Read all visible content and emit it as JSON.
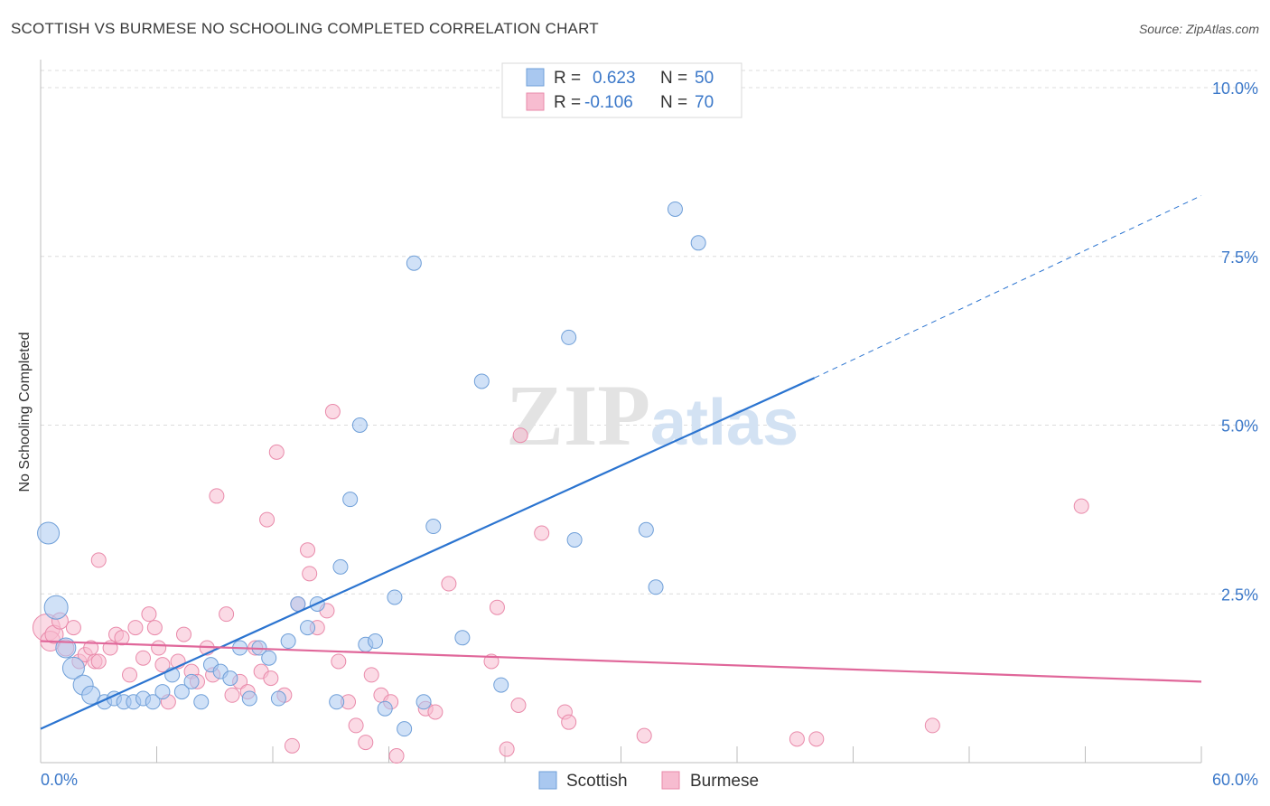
{
  "header": {
    "title": "SCOTTISH VS BURMESE NO SCHOOLING COMPLETED CORRELATION CHART",
    "source": "Source: ZipAtlas.com"
  },
  "watermark": {
    "zip": "ZIP",
    "atlas": "atlas"
  },
  "legend_top": [
    {
      "r_label": "R =",
      "r_value": "0.623",
      "n_label": "N =",
      "n_value": "50"
    },
    {
      "r_label": "R =",
      "r_value": "-0.106",
      "n_label": "N =",
      "n_value": "70"
    }
  ],
  "colors": {
    "scottish_fill": "#a9c8f0",
    "scottish_stroke": "#6f9fd8",
    "scottish_line": "#2b74d0",
    "burmese_fill": "#f7bcd0",
    "burmese_stroke": "#e98aaa",
    "burmese_line": "#e0679a",
    "value_text": "#3b78c9",
    "grid": "#dcdcdc"
  },
  "chart_data": {
    "type": "scatter",
    "title": "SCOTTISH VS BURMESE NO SCHOOLING COMPLETED CORRELATION CHART",
    "xlabel": "",
    "ylabel": "No Schooling Completed",
    "xlim": [
      0,
      60
    ],
    "ylim": [
      0,
      10
    ],
    "x_tick_labels": [
      "0.0%",
      "60.0%"
    ],
    "y_tick_labels": [
      "2.5%",
      "5.0%",
      "7.5%",
      "10.0%"
    ],
    "y_ticks": [
      2.5,
      5.0,
      7.5,
      10.0
    ],
    "grid": true,
    "legend_position": "bottom-center",
    "series": [
      {
        "name": "Scottish",
        "R": 0.623,
        "N": 50,
        "trend": {
          "x0": 0,
          "y0": 0.5,
          "x1": 40,
          "y1": 5.7,
          "dashed_to_x": 60,
          "dashed_to_y": 8.4
        },
        "points": [
          [
            0.4,
            3.4,
            12
          ],
          [
            0.8,
            2.3,
            13
          ],
          [
            1.3,
            1.7,
            11
          ],
          [
            1.7,
            1.4,
            12
          ],
          [
            2.2,
            1.15,
            11
          ],
          [
            2.6,
            1.0,
            10
          ],
          [
            3.3,
            0.9,
            8
          ],
          [
            3.8,
            0.95,
            8
          ],
          [
            4.3,
            0.9,
            8
          ],
          [
            4.8,
            0.9,
            8
          ],
          [
            5.3,
            0.95,
            8
          ],
          [
            5.8,
            0.9,
            8
          ],
          [
            6.3,
            1.05,
            8
          ],
          [
            6.8,
            1.3,
            8
          ],
          [
            7.3,
            1.05,
            8
          ],
          [
            7.8,
            1.2,
            8
          ],
          [
            8.3,
            0.9,
            8
          ],
          [
            8.8,
            1.45,
            8
          ],
          [
            9.3,
            1.35,
            8
          ],
          [
            9.8,
            1.25,
            8
          ],
          [
            10.3,
            1.7,
            8
          ],
          [
            10.8,
            0.95,
            8
          ],
          [
            11.3,
            1.7,
            8
          ],
          [
            11.8,
            1.55,
            8
          ],
          [
            12.3,
            0.95,
            8
          ],
          [
            12.8,
            1.8,
            8
          ],
          [
            13.3,
            2.35,
            8
          ],
          [
            13.8,
            2.0,
            8
          ],
          [
            14.3,
            2.35,
            8
          ],
          [
            15.3,
            0.9,
            8
          ],
          [
            15.5,
            2.9,
            8
          ],
          [
            16.0,
            3.9,
            8
          ],
          [
            16.5,
            5.0,
            8
          ],
          [
            16.8,
            1.75,
            8
          ],
          [
            17.3,
            1.8,
            8
          ],
          [
            17.8,
            0.8,
            8
          ],
          [
            18.3,
            2.45,
            8
          ],
          [
            18.8,
            0.5,
            8
          ],
          [
            19.3,
            7.4,
            8
          ],
          [
            19.8,
            0.9,
            8
          ],
          [
            20.3,
            3.5,
            8
          ],
          [
            21.8,
            1.85,
            8
          ],
          [
            22.8,
            5.65,
            8
          ],
          [
            23.8,
            1.15,
            8
          ],
          [
            27.3,
            6.3,
            8
          ],
          [
            27.6,
            3.3,
            8
          ],
          [
            31.3,
            3.45,
            8
          ],
          [
            31.8,
            2.6,
            8
          ],
          [
            32.8,
            8.2,
            8
          ],
          [
            34.0,
            7.7,
            8
          ]
        ]
      },
      {
        "name": "Burmese",
        "R": -0.106,
        "N": 70,
        "trend": {
          "x0": 0,
          "y0": 1.8,
          "x1": 60,
          "y1": 1.2
        },
        "points": [
          [
            0.3,
            2.0,
            15
          ],
          [
            0.5,
            1.8,
            11
          ],
          [
            0.7,
            1.9,
            10
          ],
          [
            1.0,
            2.1,
            9
          ],
          [
            1.3,
            1.7,
            9
          ],
          [
            1.7,
            2.0,
            8
          ],
          [
            2.0,
            1.5,
            8
          ],
          [
            2.3,
            1.6,
            8
          ],
          [
            2.6,
            1.7,
            8
          ],
          [
            2.8,
            1.5,
            8
          ],
          [
            3.0,
            1.5,
            8
          ],
          [
            3.0,
            3.0,
            8
          ],
          [
            3.6,
            1.7,
            8
          ],
          [
            3.9,
            1.9,
            8
          ],
          [
            4.2,
            1.85,
            8
          ],
          [
            4.6,
            1.3,
            8
          ],
          [
            4.9,
            2.0,
            8
          ],
          [
            5.3,
            1.55,
            8
          ],
          [
            5.6,
            2.2,
            8
          ],
          [
            5.9,
            2.0,
            8
          ],
          [
            6.1,
            1.7,
            8
          ],
          [
            6.3,
            1.45,
            8
          ],
          [
            6.6,
            0.9,
            8
          ],
          [
            7.1,
            1.5,
            8
          ],
          [
            7.4,
            1.9,
            8
          ],
          [
            7.8,
            1.35,
            8
          ],
          [
            8.1,
            1.2,
            8
          ],
          [
            8.6,
            1.7,
            8
          ],
          [
            8.9,
            1.3,
            8
          ],
          [
            9.1,
            3.95,
            8
          ],
          [
            9.6,
            2.2,
            8
          ],
          [
            9.9,
            1.0,
            8
          ],
          [
            10.3,
            1.2,
            8
          ],
          [
            10.7,
            1.05,
            8
          ],
          [
            11.1,
            1.7,
            8
          ],
          [
            11.4,
            1.35,
            8
          ],
          [
            11.7,
            3.6,
            8
          ],
          [
            11.9,
            1.25,
            8
          ],
          [
            12.2,
            4.6,
            8
          ],
          [
            12.6,
            1.0,
            8
          ],
          [
            13.0,
            0.25,
            8
          ],
          [
            13.3,
            2.35,
            8
          ],
          [
            13.8,
            3.15,
            8
          ],
          [
            13.9,
            2.8,
            8
          ],
          [
            14.3,
            2.0,
            8
          ],
          [
            14.8,
            2.25,
            8
          ],
          [
            15.1,
            5.2,
            8
          ],
          [
            15.4,
            1.5,
            8
          ],
          [
            15.9,
            0.9,
            8
          ],
          [
            16.3,
            0.55,
            8
          ],
          [
            16.8,
            0.3,
            8
          ],
          [
            17.1,
            1.3,
            8
          ],
          [
            17.6,
            1.0,
            8
          ],
          [
            18.1,
            0.9,
            8
          ],
          [
            18.4,
            0.1,
            8
          ],
          [
            19.9,
            0.8,
            8
          ],
          [
            20.4,
            0.75,
            8
          ],
          [
            21.1,
            2.65,
            8
          ],
          [
            23.3,
            1.5,
            8
          ],
          [
            23.6,
            2.3,
            8
          ],
          [
            24.1,
            0.2,
            8
          ],
          [
            24.7,
            0.85,
            8
          ],
          [
            24.8,
            4.85,
            8
          ],
          [
            25.9,
            3.4,
            8
          ],
          [
            27.1,
            0.75,
            8
          ],
          [
            27.3,
            0.6,
            8
          ],
          [
            31.2,
            0.4,
            8
          ],
          [
            39.1,
            0.35,
            8
          ],
          [
            40.1,
            0.35,
            8
          ],
          [
            46.1,
            0.55,
            8
          ],
          [
            53.8,
            3.8,
            8
          ]
        ]
      }
    ]
  },
  "legend_bottom": [
    {
      "label": "Scottish"
    },
    {
      "label": "Burmese"
    }
  ]
}
